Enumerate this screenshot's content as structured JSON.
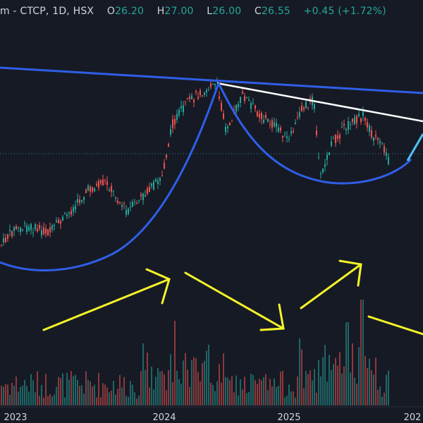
{
  "header": {
    "symbol": "m - CTCP, 1D, HSX",
    "open_label": "O",
    "open": "26.20",
    "high_label": "H",
    "high": "27.00",
    "low_label": "L",
    "low": "26.00",
    "close_label": "C",
    "close": "26.55",
    "change": "+0.45 (+1.72%)"
  },
  "colors": {
    "background": "#161a25",
    "up": "#26a69a",
    "down": "#ef5350",
    "trendline": "#2f5fe8",
    "curve": "#2f5fe8",
    "neckline": "#ffffff",
    "arrows": "#f5f528",
    "breakout": "#4fc3f7"
  },
  "chart_data": {
    "type": "candlestick",
    "x_tick_labels": [
      "2023",
      "2024",
      "2025",
      "202"
    ],
    "last_price": 26.55,
    "annotations": [
      "cup-and-handle pattern with resistance trendline",
      "rounded base curves",
      "yellow directional arrows"
    ],
    "grid": false
  }
}
